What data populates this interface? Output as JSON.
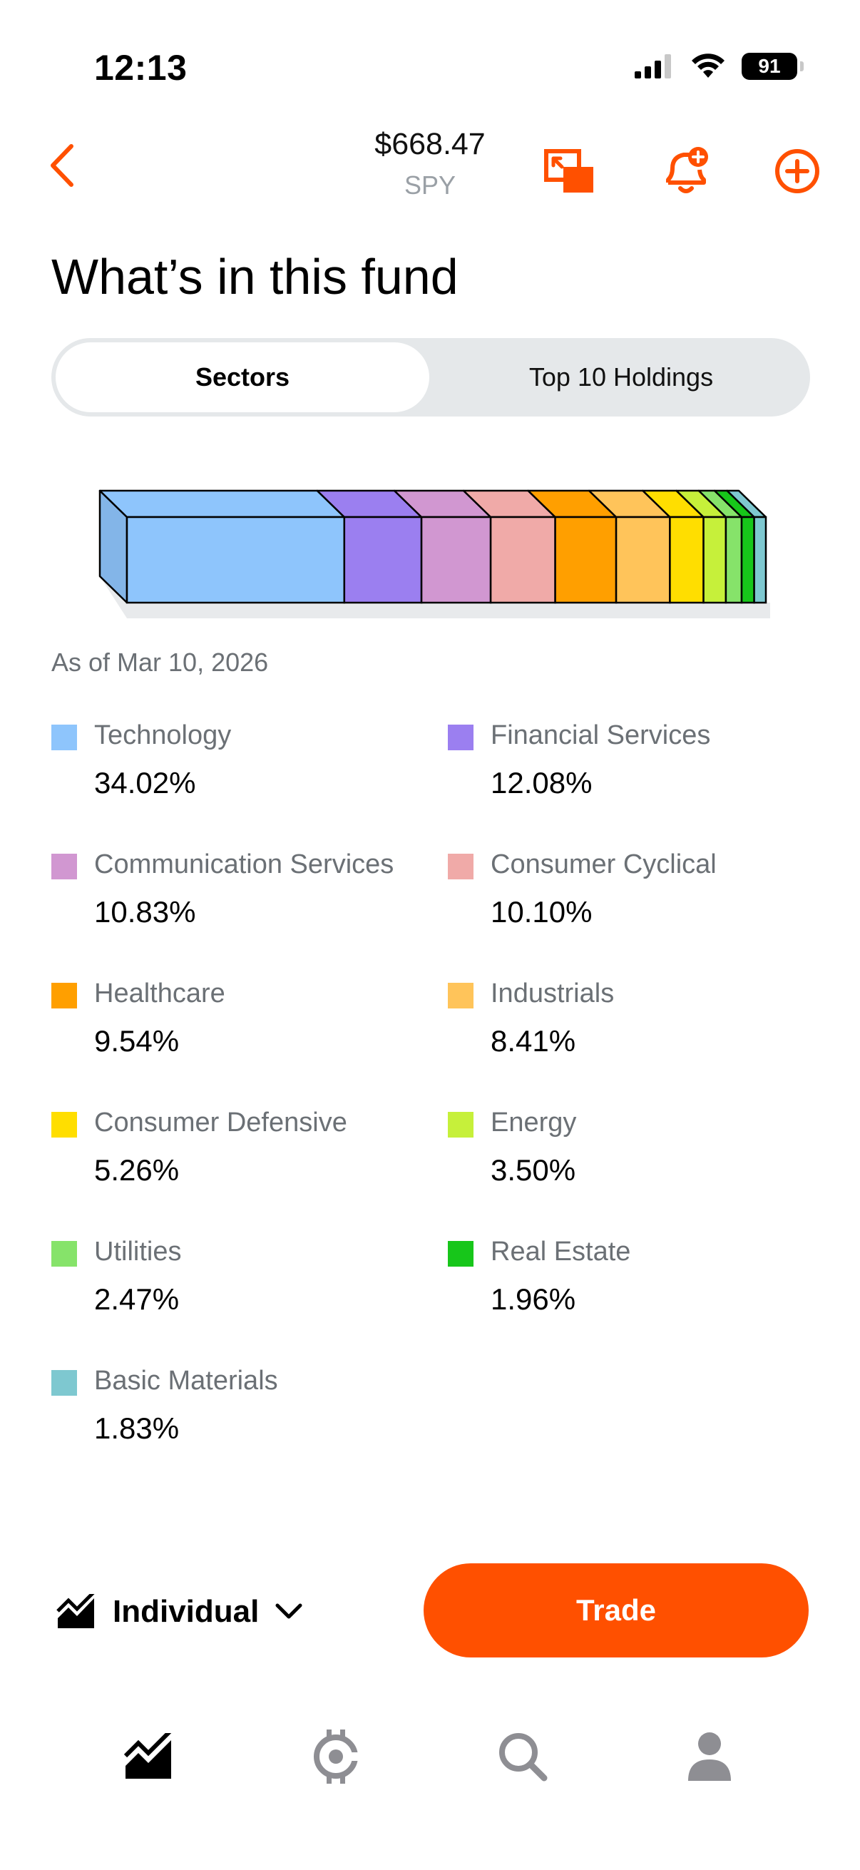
{
  "status": {
    "time": "12:13",
    "battery": "91"
  },
  "header": {
    "price": "$668.47",
    "symbol": "SPY"
  },
  "page": {
    "title": "What’s in this fund"
  },
  "tabs": [
    {
      "label": "Sectors",
      "active": true
    },
    {
      "label": "Top 10 Holdings",
      "active": false
    }
  ],
  "as_of": "As of Mar 10, 2026",
  "sectors": [
    {
      "name": "Technology",
      "value": "34.02%",
      "color": "#8ec5fc"
    },
    {
      "name": "Financial Services",
      "value": "12.08%",
      "color": "#9b7ff0"
    },
    {
      "name": "Communication Services",
      "value": "10.83%",
      "color": "#d197d1"
    },
    {
      "name": "Consumer Cyclical",
      "value": "10.10%",
      "color": "#f0aaa8"
    },
    {
      "name": "Healthcare",
      "value": "9.54%",
      "color": "#ff9f00"
    },
    {
      "name": "Industrials",
      "value": "8.41%",
      "color": "#ffc45a"
    },
    {
      "name": "Consumer Defensive",
      "value": "5.26%",
      "color": "#ffde00"
    },
    {
      "name": "Energy",
      "value": "3.50%",
      "color": "#c6f03a"
    },
    {
      "name": "Utilities",
      "value": "2.47%",
      "color": "#86e36a"
    },
    {
      "name": "Real Estate",
      "value": "1.96%",
      "color": "#17c61a"
    },
    {
      "name": "Basic Materials",
      "value": "1.83%",
      "color": "#7ec8d0"
    }
  ],
  "chart_data": {
    "type": "bar",
    "orientation": "stacked-horizontal",
    "categories": [
      "Technology",
      "Financial Services",
      "Communication Services",
      "Consumer Cyclical",
      "Healthcare",
      "Industrials",
      "Consumer Defensive",
      "Energy",
      "Utilities",
      "Real Estate",
      "Basic Materials"
    ],
    "values": [
      34.02,
      12.08,
      10.83,
      10.1,
      9.54,
      8.41,
      5.26,
      3.5,
      2.47,
      1.96,
      1.83
    ],
    "unit": "%",
    "title": "",
    "xlabel": "",
    "ylabel": ""
  },
  "bottom": {
    "account_label": "Individual",
    "trade_label": "Trade"
  },
  "colors": {
    "accent": "#ff5000",
    "muted": "#6b7075",
    "segment_bg": "#e5e8ea"
  }
}
